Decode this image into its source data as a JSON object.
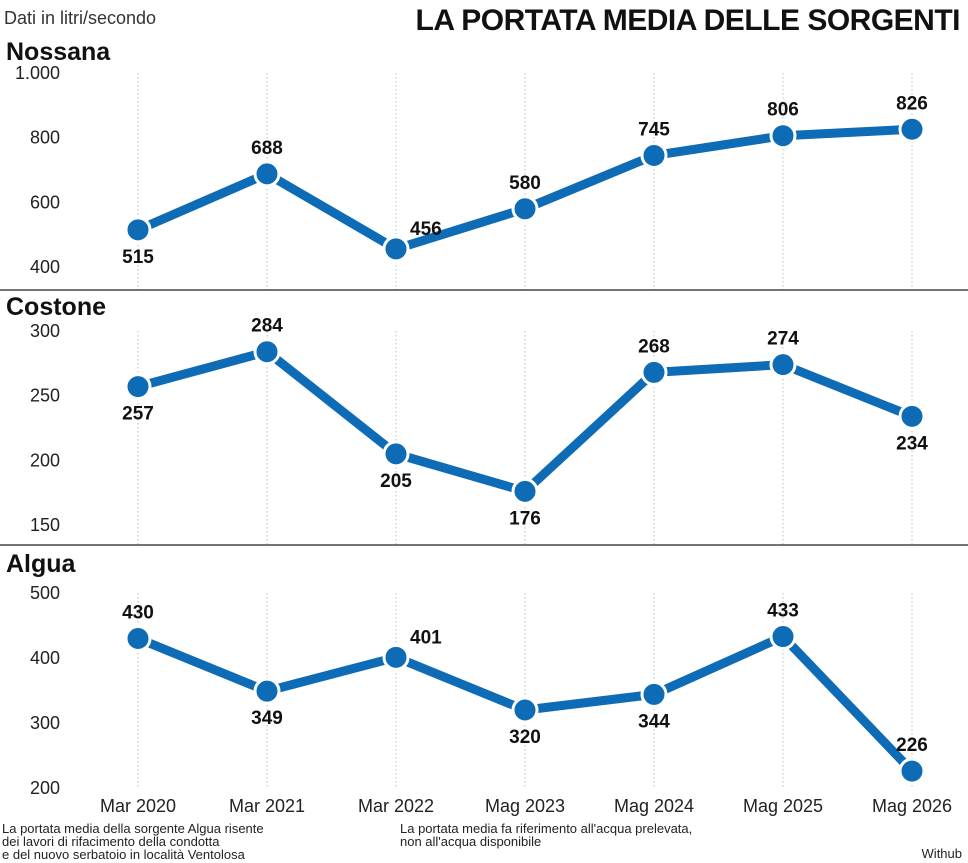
{
  "header": {
    "units": "Dati in litri/secondo",
    "title": "LA PORTATA MEDIA DELLE SORGENTI"
  },
  "chart_data": [
    {
      "type": "line",
      "title": "Nossana",
      "categories": [
        "Mar 2020",
        "Mar 2021",
        "Mar 2022",
        "Mag 2023",
        "Mag 2024",
        "Mag 2025",
        "Mag 2026"
      ],
      "values": [
        515,
        688,
        456,
        580,
        745,
        806,
        826
      ],
      "ylim": [
        400,
        1000
      ],
      "yticks": [
        "400",
        "600",
        "800",
        "1.000"
      ],
      "grid": "vertical",
      "color": "#0e6bb5"
    },
    {
      "type": "line",
      "title": "Costone",
      "categories": [
        "Mar 2020",
        "Mar 2021",
        "Mar 2022",
        "Mag 2023",
        "Mag 2024",
        "Mag 2025",
        "Mag 2026"
      ],
      "values": [
        257,
        284,
        205,
        176,
        268,
        274,
        234
      ],
      "ylim": [
        150,
        300
      ],
      "yticks": [
        "150",
        "200",
        "250",
        "300"
      ],
      "grid": "vertical",
      "color": "#0e6bb5"
    },
    {
      "type": "line",
      "title": "Algua",
      "categories": [
        "Mar 2020",
        "Mar 2021",
        "Mar 2022",
        "Mag 2023",
        "Mag 2024",
        "Mag 2025",
        "Mag 2026"
      ],
      "values": [
        430,
        349,
        401,
        320,
        344,
        433,
        226
      ],
      "ylim": [
        200,
        500
      ],
      "yticks": [
        "200",
        "300",
        "400",
        "500"
      ],
      "grid": "vertical",
      "color": "#0e6bb5"
    }
  ],
  "notes": {
    "left": [
      "La portata media della sorgente Algua risente",
      "dei lavori di rifacimento della condotta",
      "e del nuovo serbatoio in località Ventolosa"
    ],
    "right": [
      "La portata media fa riferimento all'acqua prelevata,",
      "non all'acqua disponibile"
    ],
    "source": "Withub"
  }
}
